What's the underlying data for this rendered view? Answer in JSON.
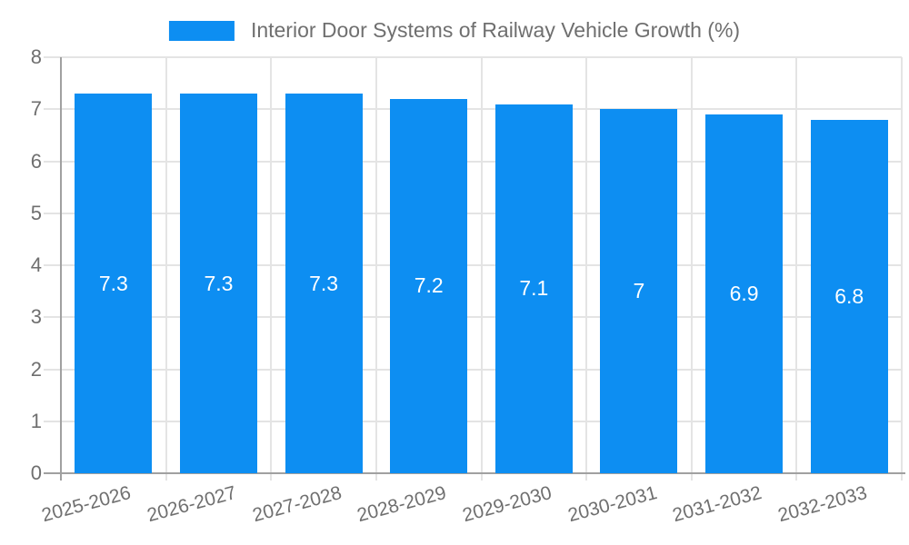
{
  "chart_data": {
    "type": "bar",
    "title": "Interior Door Systems of Railway Vehicle Growth (%)",
    "categories": [
      "2025-2026",
      "2026-2027",
      "2027-2028",
      "2028-2029",
      "2029-2030",
      "2030-2031",
      "2031-2032",
      "2032-2033"
    ],
    "values": [
      7.3,
      7.3,
      7.3,
      7.2,
      7.1,
      7,
      6.9,
      6.8
    ],
    "value_labels": [
      "7.3",
      "7.3",
      "7.3",
      "7.2",
      "7.1",
      "7",
      "6.9",
      "6.8"
    ],
    "xlabel": "",
    "ylabel": "",
    "ylim": [
      0,
      8
    ],
    "yticks": [
      0,
      1,
      2,
      3,
      4,
      5,
      6,
      7,
      8
    ],
    "grid": true,
    "legend_position": "top-center",
    "x_label_rotation_deg": -15,
    "bar_color": "#0d8ef2",
    "bar_label_color": "#ffffff",
    "text_color": "#6f6f6f",
    "grid_color": "#e4e4e4",
    "axis_color": "#a0a0a0",
    "background_color": "#ffffff"
  }
}
